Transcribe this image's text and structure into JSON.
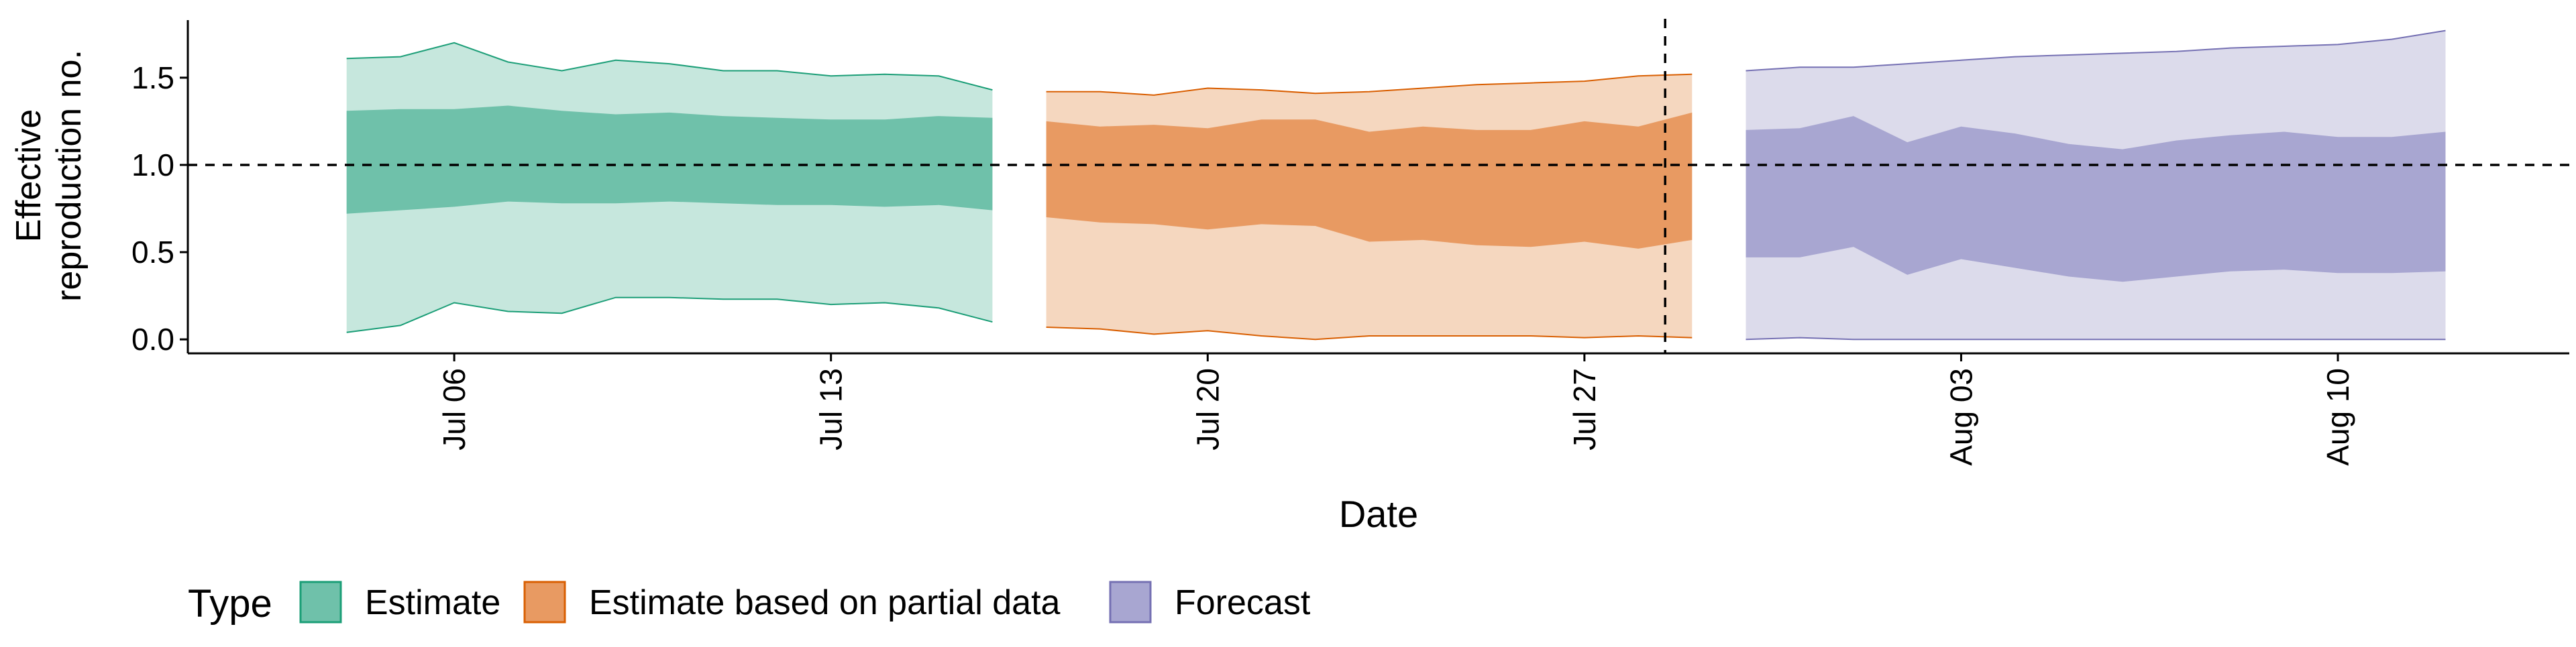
{
  "chart_data": {
    "type": "area",
    "title": "",
    "xlabel": "Date",
    "ylabel_lines": [
      "Effective",
      "reproduction no."
    ],
    "ylim": [
      -0.08,
      1.83
    ],
    "y_ticks": [
      0.0,
      0.5,
      1.0,
      1.5
    ],
    "y_tick_labels": [
      "0.0",
      "0.5",
      "1.0",
      "1.5"
    ],
    "x_ticks": [
      {
        "label": "Jul 06",
        "day": 6
      },
      {
        "label": "Jul 13",
        "day": 13
      },
      {
        "label": "Jul 20",
        "day": 20
      },
      {
        "label": "Jul 27",
        "day": 27
      },
      {
        "label": "Aug 03",
        "day": 34
      },
      {
        "label": "Aug 10",
        "day": 41
      }
    ],
    "xlim_day": [
      1.05,
      45.3
    ],
    "reference_hline": 1.0,
    "reference_vline_day": 28.5,
    "legend": {
      "title": "Type",
      "position": "bottom-left"
    },
    "series": [
      {
        "name": "Estimate",
        "color_outer": "#c6e7dd",
        "color_inner": "#6fc1aa",
        "color_line": "#1b9e77",
        "points": [
          {
            "day": 4,
            "lower90": 0.04,
            "lower50": 0.72,
            "upper50": 1.31,
            "upper90": 1.61
          },
          {
            "day": 5,
            "lower90": 0.08,
            "lower50": 0.74,
            "upper50": 1.32,
            "upper90": 1.62
          },
          {
            "day": 6,
            "lower90": 0.21,
            "lower50": 0.76,
            "upper50": 1.32,
            "upper90": 1.7
          },
          {
            "day": 7,
            "lower90": 0.16,
            "lower50": 0.79,
            "upper50": 1.34,
            "upper90": 1.59
          },
          {
            "day": 8,
            "lower90": 0.15,
            "lower50": 0.78,
            "upper50": 1.31,
            "upper90": 1.54
          },
          {
            "day": 9,
            "lower90": 0.24,
            "lower50": 0.78,
            "upper50": 1.29,
            "upper90": 1.6
          },
          {
            "day": 10,
            "lower90": 0.24,
            "lower50": 0.79,
            "upper50": 1.3,
            "upper90": 1.58
          },
          {
            "day": 11,
            "lower90": 0.23,
            "lower50": 0.78,
            "upper50": 1.28,
            "upper90": 1.54
          },
          {
            "day": 12,
            "lower90": 0.23,
            "lower50": 0.77,
            "upper50": 1.27,
            "upper90": 1.54
          },
          {
            "day": 13,
            "lower90": 0.2,
            "lower50": 0.77,
            "upper50": 1.26,
            "upper90": 1.51
          },
          {
            "day": 14,
            "lower90": 0.21,
            "lower50": 0.76,
            "upper50": 1.26,
            "upper90": 1.52
          },
          {
            "day": 15,
            "lower90": 0.18,
            "lower50": 0.77,
            "upper50": 1.28,
            "upper90": 1.51
          },
          {
            "day": 16,
            "lower90": 0.1,
            "lower50": 0.74,
            "upper50": 1.27,
            "upper90": 1.43
          }
        ]
      },
      {
        "name": "Estimate based on partial data",
        "color_outer": "#f5d7bf",
        "color_inner": "#e89a62",
        "color_line": "#d95f02",
        "points": [
          {
            "day": 17,
            "lower90": 0.07,
            "lower50": 0.7,
            "upper50": 1.25,
            "upper90": 1.42
          },
          {
            "day": 18,
            "lower90": 0.06,
            "lower50": 0.67,
            "upper50": 1.22,
            "upper90": 1.42
          },
          {
            "day": 19,
            "lower90": 0.03,
            "lower50": 0.66,
            "upper50": 1.23,
            "upper90": 1.4
          },
          {
            "day": 20,
            "lower90": 0.05,
            "lower50": 0.63,
            "upper50": 1.21,
            "upper90": 1.44
          },
          {
            "day": 21,
            "lower90": 0.02,
            "lower50": 0.66,
            "upper50": 1.26,
            "upper90": 1.43
          },
          {
            "day": 22,
            "lower90": 0.0,
            "lower50": 0.65,
            "upper50": 1.26,
            "upper90": 1.41
          },
          {
            "day": 23,
            "lower90": 0.02,
            "lower50": 0.56,
            "upper50": 1.19,
            "upper90": 1.42
          },
          {
            "day": 24,
            "lower90": 0.02,
            "lower50": 0.57,
            "upper50": 1.22,
            "upper90": 1.44
          },
          {
            "day": 25,
            "lower90": 0.02,
            "lower50": 0.54,
            "upper50": 1.2,
            "upper90": 1.46
          },
          {
            "day": 26,
            "lower90": 0.02,
            "lower50": 0.53,
            "upper50": 1.2,
            "upper90": 1.47
          },
          {
            "day": 27,
            "lower90": 0.01,
            "lower50": 0.56,
            "upper50": 1.25,
            "upper90": 1.48
          },
          {
            "day": 28,
            "lower90": 0.02,
            "lower50": 0.52,
            "upper50": 1.22,
            "upper90": 1.51
          },
          {
            "day": 29,
            "lower90": 0.01,
            "lower50": 0.57,
            "upper50": 1.3,
            "upper90": 1.52
          }
        ]
      },
      {
        "name": "Forecast",
        "color_outer": "#dcdbeb",
        "color_inner": "#a8a6d1",
        "color_line": "#7570b3",
        "points": [
          {
            "day": 30,
            "lower90": 0.0,
            "lower50": 0.47,
            "upper50": 1.2,
            "upper90": 1.54
          },
          {
            "day": 31,
            "lower90": 0.01,
            "lower50": 0.47,
            "upper50": 1.21,
            "upper90": 1.56
          },
          {
            "day": 32,
            "lower90": 0.0,
            "lower50": 0.53,
            "upper50": 1.28,
            "upper90": 1.56
          },
          {
            "day": 33,
            "lower90": 0.0,
            "lower50": 0.37,
            "upper50": 1.13,
            "upper90": 1.58
          },
          {
            "day": 34,
            "lower90": 0.0,
            "lower50": 0.46,
            "upper50": 1.22,
            "upper90": 1.6
          },
          {
            "day": 35,
            "lower90": 0.0,
            "lower50": 0.41,
            "upper50": 1.18,
            "upper90": 1.62
          },
          {
            "day": 36,
            "lower90": 0.0,
            "lower50": 0.36,
            "upper50": 1.12,
            "upper90": 1.63
          },
          {
            "day": 37,
            "lower90": 0.0,
            "lower50": 0.33,
            "upper50": 1.09,
            "upper90": 1.64
          },
          {
            "day": 38,
            "lower90": 0.0,
            "lower50": 0.36,
            "upper50": 1.14,
            "upper90": 1.65
          },
          {
            "day": 39,
            "lower90": 0.0,
            "lower50": 0.39,
            "upper50": 1.17,
            "upper90": 1.67
          },
          {
            "day": 40,
            "lower90": 0.0,
            "lower50": 0.4,
            "upper50": 1.19,
            "upper90": 1.68
          },
          {
            "day": 41,
            "lower90": 0.0,
            "lower50": 0.38,
            "upper50": 1.16,
            "upper90": 1.69
          },
          {
            "day": 42,
            "lower90": 0.0,
            "lower50": 0.38,
            "upper50": 1.16,
            "upper90": 1.72
          },
          {
            "day": 43,
            "lower90": 0.0,
            "lower50": 0.39,
            "upper50": 1.19,
            "upper90": 1.77
          }
        ]
      }
    ]
  }
}
